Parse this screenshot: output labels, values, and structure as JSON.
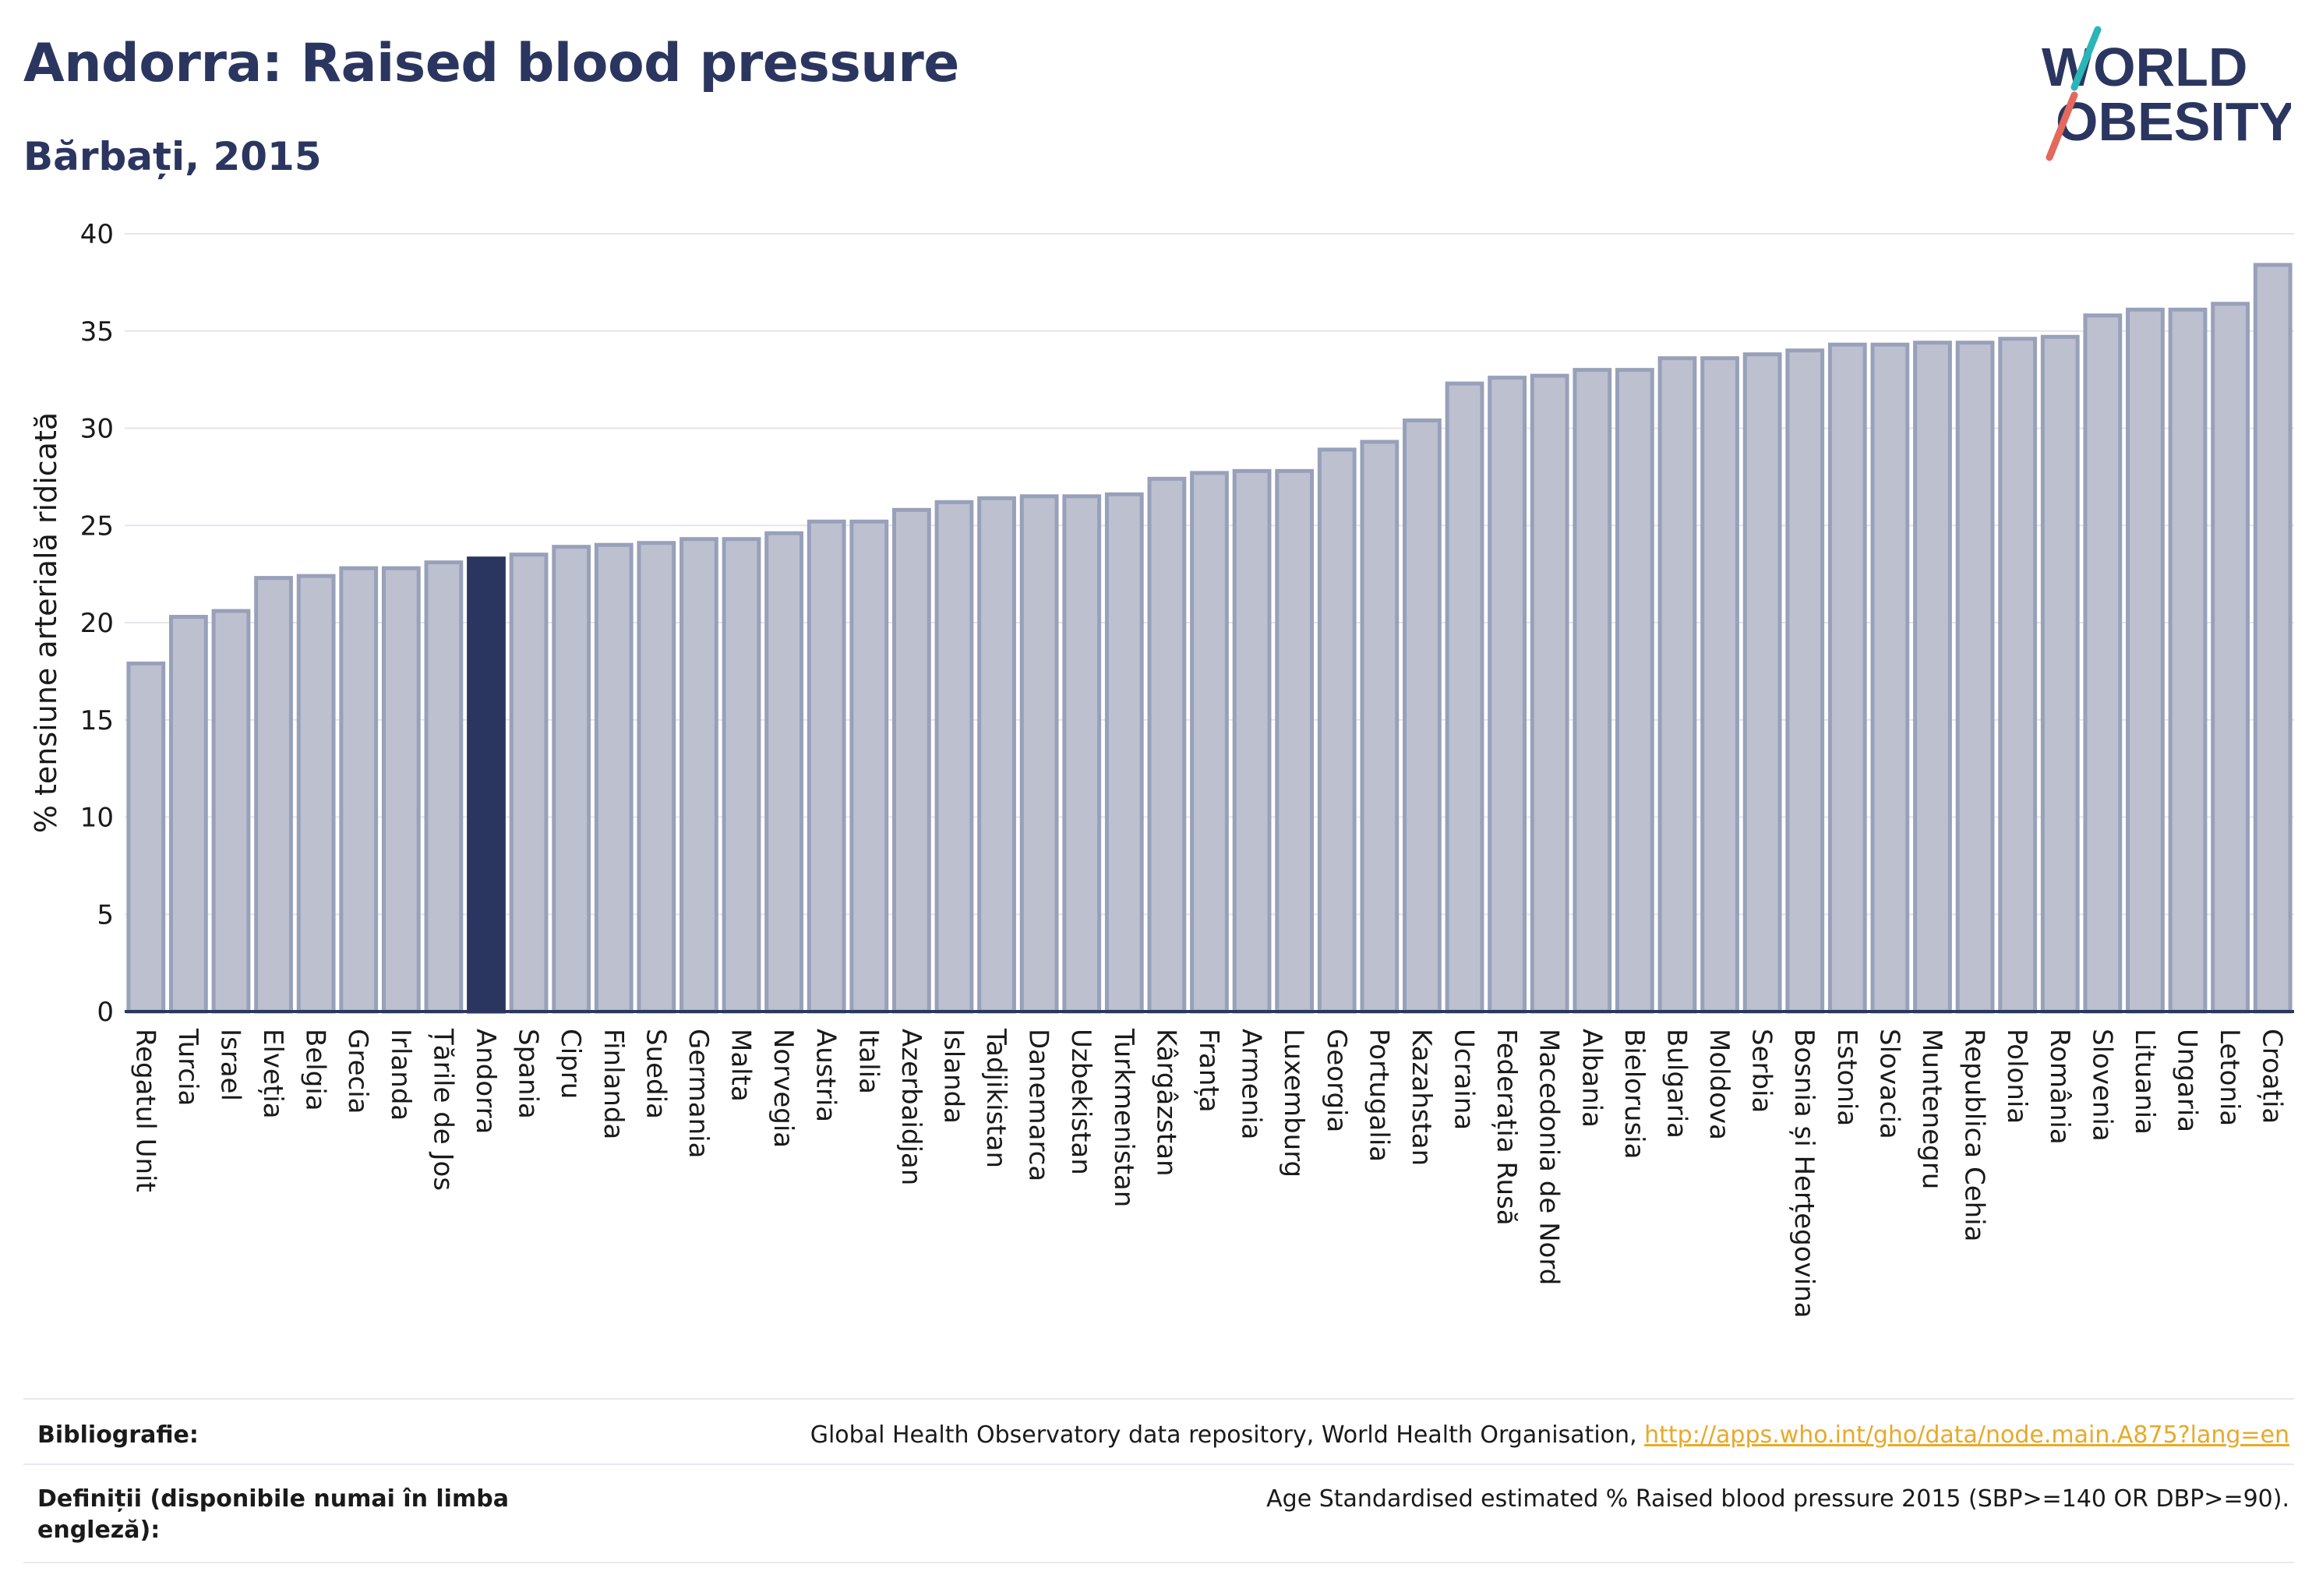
{
  "header": {
    "title": "Andorra: Raised blood pressure",
    "subtitle": "Bărbați, 2015"
  },
  "logo": {
    "line1": "WORLD",
    "line2": "OBESITY",
    "slash_colors": [
      "#2bb5b8",
      "#e4685c"
    ],
    "text_color": "#2b3660"
  },
  "chart_data": {
    "type": "bar",
    "title": "Andorra: Raised blood pressure",
    "subtitle": "Bărbați, 2015",
    "xlabel": "",
    "ylabel": "% tensiune arterială ridicată",
    "ylim": [
      0,
      40
    ],
    "yticks": [
      0,
      5,
      10,
      15,
      20,
      25,
      30,
      35,
      40
    ],
    "grid": true,
    "highlight": "Andorra",
    "colors": {
      "bar_fill": "#bdc0cf",
      "bar_stroke": "#98a0ba",
      "highlight_fill": "#2b3660",
      "axis": "#2b3660",
      "grid": "#e5e5ea"
    },
    "categories": [
      "Regatul Unit",
      "Turcia",
      "Israel",
      "Elveția",
      "Belgia",
      "Grecia",
      "Irlanda",
      "Țările de Jos",
      "Andorra",
      "Spania",
      "Cipru",
      "Finlanda",
      "Suedia",
      "Germania",
      "Malta",
      "Norvegia",
      "Austria",
      "Italia",
      "Azerbaidjan",
      "Islanda",
      "Tadjikistan",
      "Danemarca",
      "Uzbekistan",
      "Turkmenistan",
      "Kârgâzstan",
      "Franța",
      "Armenia",
      "Luxemburg",
      "Georgia",
      "Portugalia",
      "Kazahstan",
      "Ucraina",
      "Federația Rusă",
      "Macedonia de Nord",
      "Albania",
      "Bielorusia",
      "Bulgaria",
      "Moldova",
      "Serbia",
      "Bosnia și Herțegovina",
      "Estonia",
      "Slovacia",
      "Muntenegru",
      "Republica Cehia",
      "Polonia",
      "România",
      "Slovenia",
      "Lituania",
      "Ungaria",
      "Letonia",
      "Croația"
    ],
    "values": [
      17.9,
      20.3,
      20.6,
      22.3,
      22.4,
      22.8,
      22.8,
      23.1,
      23.3,
      23.5,
      23.9,
      24.0,
      24.1,
      24.3,
      24.3,
      24.6,
      25.2,
      25.2,
      25.8,
      26.2,
      26.4,
      26.5,
      26.5,
      26.6,
      27.4,
      27.7,
      27.8,
      27.8,
      28.9,
      29.3,
      30.4,
      32.3,
      32.6,
      32.7,
      33.0,
      33.0,
      33.6,
      33.6,
      33.8,
      34.0,
      34.3,
      34.3,
      34.4,
      34.4,
      34.6,
      34.7,
      35.8,
      36.1,
      36.1,
      36.4,
      38.4
    ]
  },
  "footer": {
    "bibliography_label": "Bibliografie:",
    "bibliography_text": "Global Health Observatory data repository, World Health Organisation, ",
    "bibliography_link": "http://apps.who.int/gho/data/node.main.A875?lang=en",
    "definitions_label": "Definiții (disponibile numai în limba engleză):",
    "definitions_text": "Age Standardised estimated % Raised blood pressure 2015 (SBP>=140 OR DBP>=90)."
  }
}
